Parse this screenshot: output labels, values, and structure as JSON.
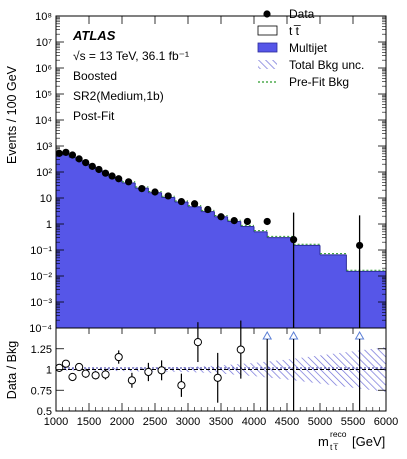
{
  "chart_data": [
    {
      "panel": "main",
      "type": "area",
      "ylabel": "Events / 100 GeV",
      "yscale": "log",
      "ylim": [
        0.0001,
        100000000
      ],
      "y_tick_labels": [
        "10⁻⁴",
        "10⁻³",
        "10⁻²",
        "10⁻¹",
        "1",
        "10",
        "10²",
        "10³",
        "10⁴",
        "10⁵",
        "10⁶",
        "10⁷",
        "10⁸"
      ],
      "annotations": [
        "ATLAS",
        "√s = 13 TeV, 36.1 fb⁻¹",
        "Boosted",
        "SR2(Medium,1b)",
        "Post-Fit"
      ],
      "legend_position": "top-right",
      "legend": [
        "Data",
        "t t̅",
        "Multijet",
        "Total Bkg unc.",
        "Pre-Fit Bkg"
      ],
      "series": [
        {
          "name": "Multijet",
          "kind": "stacked-area",
          "bin_edges": [
            1000,
            1100,
            1200,
            1300,
            1400,
            1500,
            1600,
            1700,
            1800,
            1900,
            2000,
            2200,
            2400,
            2600,
            2800,
            3000,
            3200,
            3400,
            3600,
            3800,
            4000,
            4200,
            4600,
            5000,
            5400,
            6000
          ],
          "values": [
            500,
            450,
            360,
            280,
            210,
            160,
            120,
            88,
            66,
            50,
            38,
            24,
            16,
            10.5,
            7.0,
            4.6,
            3.0,
            1.9,
            1.25,
            0.8,
            0.5,
            0.3,
            0.15,
            0.065,
            0.015
          ]
        },
        {
          "name": "Data",
          "kind": "points",
          "x": [
            1050,
            1150,
            1250,
            1350,
            1450,
            1550,
            1650,
            1750,
            1850,
            1950,
            2100,
            2300,
            2500,
            2700,
            2900,
            3100,
            3300,
            3500,
            3700,
            3900,
            4200,
            4600,
            5600
          ],
          "y": [
            520,
            570,
            450,
            320,
            230,
            165,
            125,
            90,
            70,
            55,
            42,
            23,
            17,
            12,
            7.3,
            6.0,
            3.6,
            1.9,
            1.35,
            1.25,
            1.25,
            0.25,
            0.15
          ],
          "y_err_up": [
            null,
            null,
            null,
            null,
            null,
            null,
            null,
            null,
            null,
            null,
            null,
            null,
            null,
            null,
            null,
            null,
            null,
            null,
            null,
            null,
            null,
            2.5,
            2.0
          ],
          "y_err_down": [
            null,
            null,
            null,
            null,
            null,
            null,
            null,
            null,
            null,
            null,
            null,
            null,
            null,
            null,
            null,
            null,
            null,
            null,
            null,
            null,
            null,
            0.25,
            0.15
          ]
        }
      ]
    },
    {
      "panel": "ratio",
      "type": "scatter",
      "ylabel": "Data / Bkg",
      "xlabel": "m",
      "xlabel_sup": "reco",
      "xlabel_sub": "t t̅",
      "xlabel_unit": "[GeV]",
      "xlim": [
        1000,
        6000
      ],
      "ylim": [
        0.5,
        1.5
      ],
      "x_ticks": [
        1000,
        1500,
        2000,
        2500,
        3000,
        3500,
        4000,
        4500,
        5000,
        5500,
        6000
      ],
      "y_ticks": [
        "0.5",
        "0.75",
        "1",
        "1.25"
      ],
      "series": [
        {
          "name": "Data / Bkg",
          "kind": "open-points",
          "x": [
            1050,
            1150,
            1250,
            1350,
            1450,
            1600,
            1750,
            1950,
            2150,
            2400,
            2600,
            2900,
            3150,
            3450,
            3800
          ],
          "y": [
            1.02,
            1.07,
            0.91,
            1.03,
            0.95,
            0.93,
            0.94,
            1.15,
            0.87,
            0.97,
            0.99,
            0.81,
            1.33,
            0.9,
            1.24
          ],
          "y_err": [
            0.02,
            0.02,
            0.04,
            0.04,
            0.05,
            0.05,
            0.06,
            0.08,
            0.09,
            0.11,
            0.12,
            0.14,
            0.24,
            0.3,
            0.35
          ]
        },
        {
          "name": "out-of-range markers",
          "kind": "up-triangle",
          "x": [
            4200,
            4600,
            5600
          ]
        }
      ],
      "band": {
        "name": "Total Bkg unc.",
        "x": [
          1000,
          2000,
          3000,
          3500,
          4000,
          4500,
          5000,
          5500,
          6000
        ],
        "half_width": [
          0.01,
          0.02,
          0.03,
          0.05,
          0.08,
          0.12,
          0.17,
          0.22,
          0.27
        ]
      }
    }
  ],
  "colors": {
    "multijet": "#5656e8",
    "multijet_line": "#2c2c9c",
    "ttbar": "#ffffff",
    "prefit": "#2b9a2b",
    "unc_hatch": "#7070d8",
    "data": "#000000"
  }
}
